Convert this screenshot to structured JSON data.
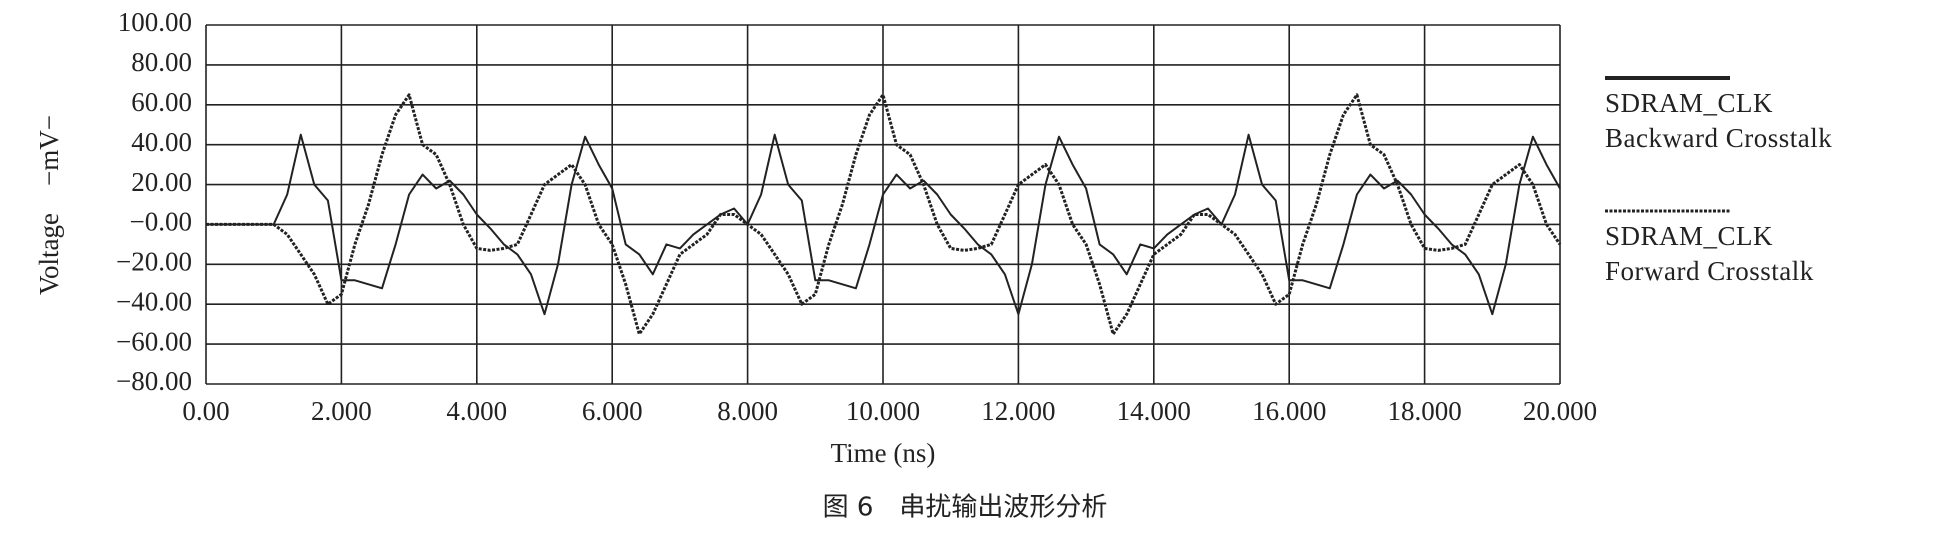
{
  "chart_data": {
    "type": "line",
    "caption": "图 6　串扰输出波形分析",
    "x_label": "Time (ns)",
    "y_label": "Voltage　−mV−",
    "xlim": [
      0,
      20
    ],
    "ylim": [
      -80,
      100
    ],
    "xticks": [
      {
        "value": 0,
        "label": "0.00"
      },
      {
        "value": 2,
        "label": "2.000"
      },
      {
        "value": 4,
        "label": "4.000"
      },
      {
        "value": 6,
        "label": "6.000"
      },
      {
        "value": 8,
        "label": "8.000"
      },
      {
        "value": 10,
        "label": "10.000"
      },
      {
        "value": 12,
        "label": "12.000"
      },
      {
        "value": 14,
        "label": "14.000"
      },
      {
        "value": 16,
        "label": "16.000"
      },
      {
        "value": 18,
        "label": "18.000"
      },
      {
        "value": 20,
        "label": "20.000"
      }
    ],
    "yticks": [
      {
        "value": -80,
        "label": "−80.00"
      },
      {
        "value": -60,
        "label": "−60.00"
      },
      {
        "value": -40,
        "label": "−40.00"
      },
      {
        "value": -20,
        "label": "−20.00"
      },
      {
        "value": 0,
        "label": "−0.00"
      },
      {
        "value": 20,
        "label": "20.00"
      },
      {
        "value": 40,
        "label": "40.00"
      },
      {
        "value": 60,
        "label": "60.00"
      },
      {
        "value": 80,
        "label": "80.00"
      },
      {
        "value": 100,
        "label": "100.00"
      }
    ],
    "grid": true,
    "x": [
      0,
      0.2,
      0.4,
      0.6,
      0.8,
      1,
      1.2,
      1.4,
      1.6,
      1.8,
      2,
      2.2,
      2.4,
      2.6,
      2.8,
      3,
      3.2,
      3.4,
      3.6,
      3.8,
      4,
      4.2,
      4.4,
      4.6,
      4.8,
      5,
      5.2,
      5.4,
      5.6,
      5.8,
      6,
      6.2,
      6.4,
      6.6,
      6.8,
      7,
      7.2,
      7.4,
      7.6,
      7.8,
      8,
      8.2,
      8.4,
      8.6,
      8.8,
      9,
      9.2,
      9.4,
      9.6,
      9.8,
      10,
      10.2,
      10.4,
      10.6,
      10.8,
      11,
      11.2,
      11.4,
      11.6,
      11.8,
      12,
      12.2,
      12.4,
      12.6,
      12.8,
      13,
      13.2,
      13.4,
      13.6,
      13.8,
      14,
      14.2,
      14.4,
      14.6,
      14.8,
      15,
      15.2,
      15.4,
      15.6,
      15.8,
      16,
      16.2,
      16.4,
      16.6,
      16.8,
      17,
      17.2,
      17.4,
      17.6,
      17.8,
      18,
      18.2,
      18.4,
      18.6,
      18.8,
      19,
      19.2,
      19.4,
      19.6,
      19.8,
      20
    ],
    "series": [
      {
        "name": "SDRAM_CLK\nBackward Crosstalk",
        "color": "#222222",
        "dash": "solid",
        "values": [
          0,
          0,
          0,
          0,
          0,
          0,
          15,
          45,
          20,
          12,
          -28,
          -28,
          -30,
          -32,
          -10,
          15,
          25,
          18,
          22,
          15,
          5,
          -2,
          -10,
          -15,
          -25,
          -45,
          -20,
          20,
          44,
          30,
          18,
          -10,
          -15,
          -25,
          -10,
          -12,
          -5,
          0,
          5,
          8,
          0,
          15,
          45,
          20,
          12,
          -28,
          -28,
          -30,
          -32,
          -10,
          15,
          25,
          18,
          22,
          15,
          5,
          -2,
          -10,
          -15,
          -25,
          -45,
          -20,
          20,
          44,
          30,
          18,
          -10,
          -15,
          -25,
          -10,
          -12,
          -5,
          0,
          5,
          8,
          0,
          15,
          45,
          20,
          12,
          -28,
          -28,
          -30,
          -32,
          -10,
          15,
          25,
          18,
          22,
          15,
          5,
          -2,
          -10,
          -15,
          -25,
          -45,
          -20,
          20,
          44,
          30,
          18
        ]
      },
      {
        "name": "SDRAM_CLK\nForward Crosstalk",
        "color": "#222222",
        "dash": "dotted",
        "values": [
          0,
          0,
          0,
          0,
          0,
          0,
          -5,
          -15,
          -25,
          -40,
          -35,
          -10,
          10,
          35,
          55,
          65,
          40,
          35,
          20,
          0,
          -12,
          -13,
          -12,
          -10,
          5,
          20,
          25,
          30,
          20,
          0,
          -10,
          -30,
          -55,
          -45,
          -30,
          -15,
          -10,
          -5,
          5,
          5,
          0,
          -5,
          -15,
          -25,
          -40,
          -35,
          -10,
          10,
          35,
          55,
          65,
          40,
          35,
          20,
          0,
          -12,
          -13,
          -12,
          -10,
          5,
          20,
          25,
          30,
          20,
          0,
          -10,
          -30,
          -55,
          -45,
          -30,
          -15,
          -10,
          -5,
          5,
          5,
          0,
          -5,
          -15,
          -25,
          -40,
          -35,
          -10,
          10,
          35,
          55,
          65,
          40,
          35,
          20,
          0,
          -12,
          -13,
          -12,
          -10,
          5,
          20,
          25,
          30,
          20,
          0,
          -10
        ]
      }
    ]
  }
}
